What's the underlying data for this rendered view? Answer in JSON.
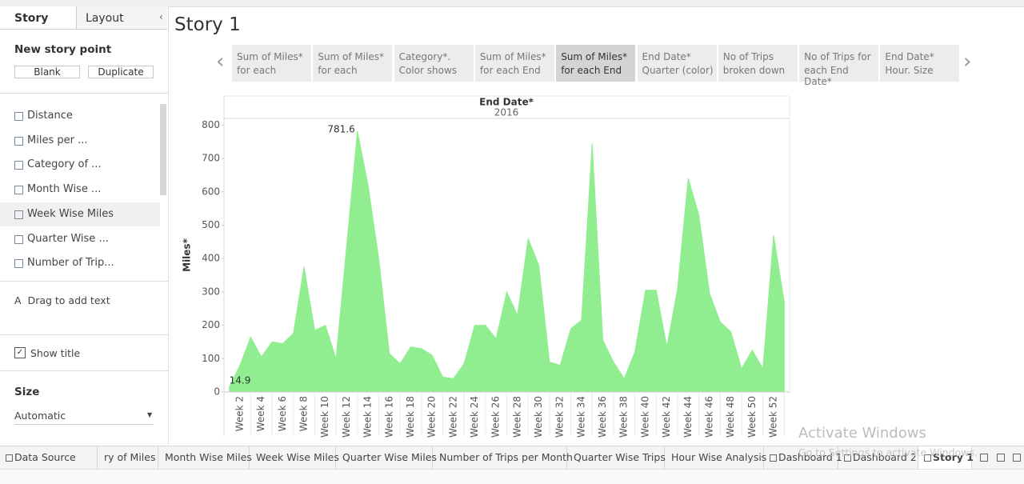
{
  "sidebar": {
    "tabs": [
      "Story",
      "Layout"
    ],
    "new_story_point": "New story point",
    "buttons": [
      "Blank",
      "Duplicate"
    ],
    "sheets": [
      "Distance",
      "Miles per ...",
      "Category of ...",
      "Month Wise ...",
      "Week Wise Miles",
      "Quarter Wise ...",
      "Number of Trip..."
    ],
    "drag_text": "Drag to add text",
    "show_title": "Show title",
    "size_label": "Size",
    "size_value": "Automatic"
  },
  "story": {
    "title": "Story 1",
    "points": [
      [
        "Sum of Miles*",
        "for each"
      ],
      [
        "Sum of Miles*",
        "for each"
      ],
      [
        "Category*.",
        "Color shows"
      ],
      [
        "Sum of Miles*",
        "for each End"
      ],
      [
        "Sum of Miles*",
        "for each End"
      ],
      [
        "End Date*",
        "Quarter (color)"
      ],
      [
        "No of Trips",
        "broken down"
      ],
      [
        "No of Trips for",
        "each End Date*"
      ],
      [
        "End Date*",
        "Hour. Size"
      ]
    ]
  },
  "chart_data": {
    "type": "area",
    "x_header": "End Date*",
    "x_header_sub": "2016",
    "y_label": "Miles*",
    "categories": [
      null,
      "Week 2",
      null,
      "Week 4",
      null,
      "Week 6",
      null,
      "Week 8",
      null,
      "Week 10",
      null,
      "Week 12",
      null,
      "Week 14",
      null,
      "Week 16",
      null,
      "Week 18",
      null,
      "Week 20",
      null,
      "Week 22",
      null,
      "Week 24",
      null,
      "Week 26",
      null,
      "Week 28",
      null,
      "Week 30",
      null,
      "Week 32",
      null,
      "Week 34",
      null,
      "Week 36",
      null,
      "Week 38",
      null,
      "Week 40",
      null,
      "Week 42",
      null,
      "Week 44",
      null,
      "Week 46",
      null,
      "Week 48",
      null,
      "Week 50",
      null,
      "Week 52",
      null
    ],
    "values": [
      14.9,
      80,
      165,
      105,
      150,
      145,
      175,
      375,
      185,
      200,
      100,
      440,
      781.6,
      620,
      400,
      115,
      85,
      135,
      130,
      110,
      45,
      40,
      85,
      200,
      200,
      160,
      300,
      230,
      460,
      380,
      90,
      80,
      190,
      215,
      745,
      155,
      90,
      40,
      120,
      305,
      305,
      135,
      310,
      640,
      530,
      295,
      210,
      180,
      70,
      125,
      70,
      470,
      270
    ],
    "color": "#90ee90",
    "ylim": [
      0,
      820
    ],
    "yticks": [
      0,
      100,
      200,
      300,
      400,
      500,
      600,
      700,
      800
    ],
    "data_labels": "min-max"
  },
  "sheet_tabs": [
    "Data Source",
    "ry of Miles",
    "Month Wise Miles",
    "Week Wise Miles",
    "Quarter Wise Miles",
    "Number of Trips per Month",
    "Quarter Wise Trips",
    "Hour Wise Analysis",
    "Dashboard 1",
    "Dashboard 2",
    "Story 1"
  ],
  "watermark": {
    "title": "Activate Windows",
    "text": "Go to Settings to activate Windows."
  }
}
